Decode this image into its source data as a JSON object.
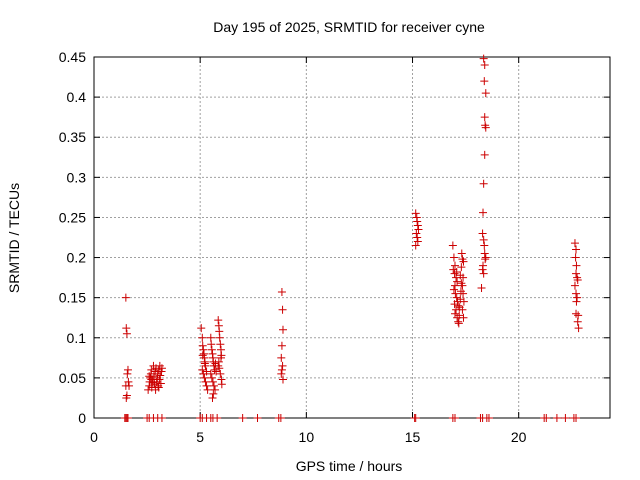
{
  "chart_data": {
    "type": "scatter",
    "title": "Day 195 of 2025, SRMTID for receiver cyne",
    "xlabel": "GPS time / hours",
    "ylabel": "SRMTID / TECUs",
    "xlim": [
      0,
      24.3
    ],
    "ylim": [
      0,
      0.45
    ],
    "grid": true,
    "x_ticks": [
      0,
      5,
      10,
      15,
      20
    ],
    "x_tick_labels": [
      "0",
      "5",
      "10",
      "15",
      "20"
    ],
    "y_ticks": [
      0,
      0.05,
      0.1,
      0.15,
      0.2,
      0.25,
      0.3,
      0.35,
      0.4,
      0.45
    ],
    "y_tick_labels": [
      "0",
      "0.05",
      "0.1",
      "0.15",
      "0.2",
      "0.25",
      "0.3",
      "0.35",
      "0.4",
      "0.45"
    ],
    "marker": "+",
    "color": "#cc0000",
    "series": [
      {
        "name": "SRMTID",
        "points": [
          [
            1.45,
            0
          ],
          [
            1.5,
            0
          ],
          [
            1.55,
            0
          ],
          [
            1.6,
            0
          ],
          [
            1.5,
            0.15
          ],
          [
            1.52,
            0.112
          ],
          [
            1.55,
            0.105
          ],
          [
            1.6,
            0.06
          ],
          [
            1.57,
            0.055
          ],
          [
            1.62,
            0.045
          ],
          [
            1.5,
            0.04
          ],
          [
            1.65,
            0.04
          ],
          [
            1.55,
            0.028
          ],
          [
            1.52,
            0.025
          ],
          [
            2.5,
            0
          ],
          [
            2.6,
            0
          ],
          [
            2.8,
            0
          ],
          [
            3.0,
            0
          ],
          [
            3.2,
            0
          ],
          [
            2.55,
            0.035
          ],
          [
            2.6,
            0.04
          ],
          [
            2.62,
            0.045
          ],
          [
            2.65,
            0.05
          ],
          [
            2.68,
            0.055
          ],
          [
            2.7,
            0.06
          ],
          [
            2.72,
            0.038
          ],
          [
            2.75,
            0.048
          ],
          [
            2.8,
            0.065
          ],
          [
            2.82,
            0.052
          ],
          [
            2.85,
            0.042
          ],
          [
            2.88,
            0.058
          ],
          [
            2.9,
            0.035
          ],
          [
            2.92,
            0.062
          ],
          [
            2.95,
            0.045
          ],
          [
            2.98,
            0.05
          ],
          [
            3.0,
            0.055
          ],
          [
            3.02,
            0.04
          ],
          [
            3.05,
            0.06
          ],
          [
            3.08,
            0.048
          ],
          [
            3.1,
            0.065
          ],
          [
            3.12,
            0.053
          ],
          [
            3.15,
            0.043
          ],
          [
            3.18,
            0.058
          ],
          [
            3.2,
            0.062
          ],
          [
            2.6,
            0.052
          ],
          [
            2.78,
            0.044
          ],
          [
            3.05,
            0.038
          ],
          [
            2.7,
            0.048
          ],
          [
            5.0,
            0
          ],
          [
            5.1,
            0
          ],
          [
            5.3,
            0
          ],
          [
            5.5,
            0
          ],
          [
            5.6,
            0
          ],
          [
            5.8,
            0
          ],
          [
            5.05,
            0.112
          ],
          [
            5.1,
            0.1
          ],
          [
            5.12,
            0.09
          ],
          [
            5.15,
            0.085
          ],
          [
            5.18,
            0.08
          ],
          [
            5.2,
            0.075
          ],
          [
            5.22,
            0.07
          ],
          [
            5.25,
            0.065
          ],
          [
            5.1,
            0.06
          ],
          [
            5.15,
            0.055
          ],
          [
            5.2,
            0.05
          ],
          [
            5.25,
            0.045
          ],
          [
            5.3,
            0.04
          ],
          [
            5.35,
            0.035
          ],
          [
            5.12,
            0.078
          ],
          [
            5.22,
            0.068
          ],
          [
            5.3,
            0.058
          ],
          [
            5.5,
            0.1
          ],
          [
            5.52,
            0.092
          ],
          [
            5.55,
            0.085
          ],
          [
            5.58,
            0.08
          ],
          [
            5.6,
            0.075
          ],
          [
            5.62,
            0.07
          ],
          [
            5.65,
            0.065
          ],
          [
            5.68,
            0.06
          ],
          [
            5.5,
            0.055
          ],
          [
            5.55,
            0.05
          ],
          [
            5.6,
            0.045
          ],
          [
            5.65,
            0.04
          ],
          [
            5.7,
            0.035
          ],
          [
            5.62,
            0.03
          ],
          [
            5.58,
            0.025
          ],
          [
            5.72,
            0.068
          ],
          [
            5.75,
            0.058
          ],
          [
            5.85,
            0.122
          ],
          [
            5.88,
            0.115
          ],
          [
            5.9,
            0.108
          ],
          [
            5.92,
            0.1
          ],
          [
            5.95,
            0.092
          ],
          [
            5.98,
            0.085
          ],
          [
            6.0,
            0.078
          ],
          [
            5.88,
            0.07
          ],
          [
            5.9,
            0.062
          ],
          [
            5.95,
            0.055
          ],
          [
            6.0,
            0.048
          ],
          [
            6.02,
            0.042
          ],
          [
            5.85,
            0.065
          ],
          [
            5.98,
            0.075
          ],
          [
            7.0,
            0
          ],
          [
            7.7,
            0
          ],
          [
            8.7,
            0
          ],
          [
            8.8,
            0
          ],
          [
            8.85,
            0.157
          ],
          [
            8.88,
            0.135
          ],
          [
            8.9,
            0.11
          ],
          [
            8.85,
            0.09
          ],
          [
            8.82,
            0.075
          ],
          [
            8.88,
            0.065
          ],
          [
            8.85,
            0.06
          ],
          [
            8.82,
            0.055
          ],
          [
            8.9,
            0.048
          ],
          [
            15.1,
            0
          ],
          [
            15.15,
            0
          ],
          [
            15.15,
            0.255
          ],
          [
            15.2,
            0.25
          ],
          [
            15.22,
            0.245
          ],
          [
            15.25,
            0.24
          ],
          [
            15.28,
            0.235
          ],
          [
            15.18,
            0.23
          ],
          [
            15.22,
            0.225
          ],
          [
            15.25,
            0.22
          ],
          [
            15.15,
            0.215
          ],
          [
            16.9,
            0
          ],
          [
            17.0,
            0
          ],
          [
            16.9,
            0.215
          ],
          [
            16.95,
            0.2
          ],
          [
            17.0,
            0.19
          ],
          [
            16.92,
            0.185
          ],
          [
            16.98,
            0.18
          ],
          [
            17.05,
            0.175
          ],
          [
            17.1,
            0.17
          ],
          [
            17.0,
            0.165
          ],
          [
            16.95,
            0.16
          ],
          [
            17.02,
            0.155
          ],
          [
            17.08,
            0.15
          ],
          [
            17.12,
            0.145
          ],
          [
            17.15,
            0.14
          ],
          [
            17.05,
            0.135
          ],
          [
            17.0,
            0.13
          ],
          [
            17.1,
            0.125
          ],
          [
            17.15,
            0.12
          ],
          [
            17.18,
            0.118
          ],
          [
            17.2,
            0.128
          ],
          [
            17.22,
            0.138
          ],
          [
            17.25,
            0.148
          ],
          [
            17.28,
            0.158
          ],
          [
            17.3,
            0.168
          ],
          [
            17.25,
            0.178
          ],
          [
            17.3,
            0.188
          ],
          [
            17.35,
            0.198
          ],
          [
            17.32,
            0.205
          ],
          [
            17.4,
            0.195
          ],
          [
            17.38,
            0.175
          ],
          [
            17.35,
            0.165
          ],
          [
            17.38,
            0.155
          ],
          [
            17.42,
            0.145
          ],
          [
            17.35,
            0.135
          ],
          [
            17.4,
            0.125
          ],
          [
            17.08,
            0.182
          ],
          [
            16.98,
            0.142
          ],
          [
            18.2,
            0
          ],
          [
            18.3,
            0
          ],
          [
            18.5,
            0
          ],
          [
            18.6,
            0
          ],
          [
            18.35,
            0.448
          ],
          [
            18.4,
            0.44
          ],
          [
            18.38,
            0.42
          ],
          [
            18.45,
            0.405
          ],
          [
            18.4,
            0.375
          ],
          [
            18.42,
            0.365
          ],
          [
            18.45,
            0.362
          ],
          [
            18.4,
            0.328
          ],
          [
            18.35,
            0.292
          ],
          [
            18.32,
            0.256
          ],
          [
            18.3,
            0.23
          ],
          [
            18.35,
            0.222
          ],
          [
            18.38,
            0.215
          ],
          [
            18.4,
            0.205
          ],
          [
            18.45,
            0.2
          ],
          [
            18.42,
            0.198
          ],
          [
            18.32,
            0.19
          ],
          [
            18.3,
            0.185
          ],
          [
            18.35,
            0.18
          ],
          [
            18.25,
            0.162
          ],
          [
            21.2,
            0
          ],
          [
            21.3,
            0
          ],
          [
            21.8,
            0
          ],
          [
            22.2,
            0
          ],
          [
            22.6,
            0
          ],
          [
            22.7,
            0
          ],
          [
            22.65,
            0.218
          ],
          [
            22.7,
            0.21
          ],
          [
            22.68,
            0.2
          ],
          [
            22.72,
            0.19
          ],
          [
            22.7,
            0.18
          ],
          [
            22.75,
            0.175
          ],
          [
            22.78,
            0.172
          ],
          [
            22.65,
            0.165
          ],
          [
            22.7,
            0.155
          ],
          [
            22.75,
            0.15
          ],
          [
            22.72,
            0.145
          ],
          [
            22.7,
            0.13
          ],
          [
            22.8,
            0.128
          ],
          [
            22.78,
            0.12
          ],
          [
            22.82,
            0.112
          ]
        ]
      }
    ]
  }
}
